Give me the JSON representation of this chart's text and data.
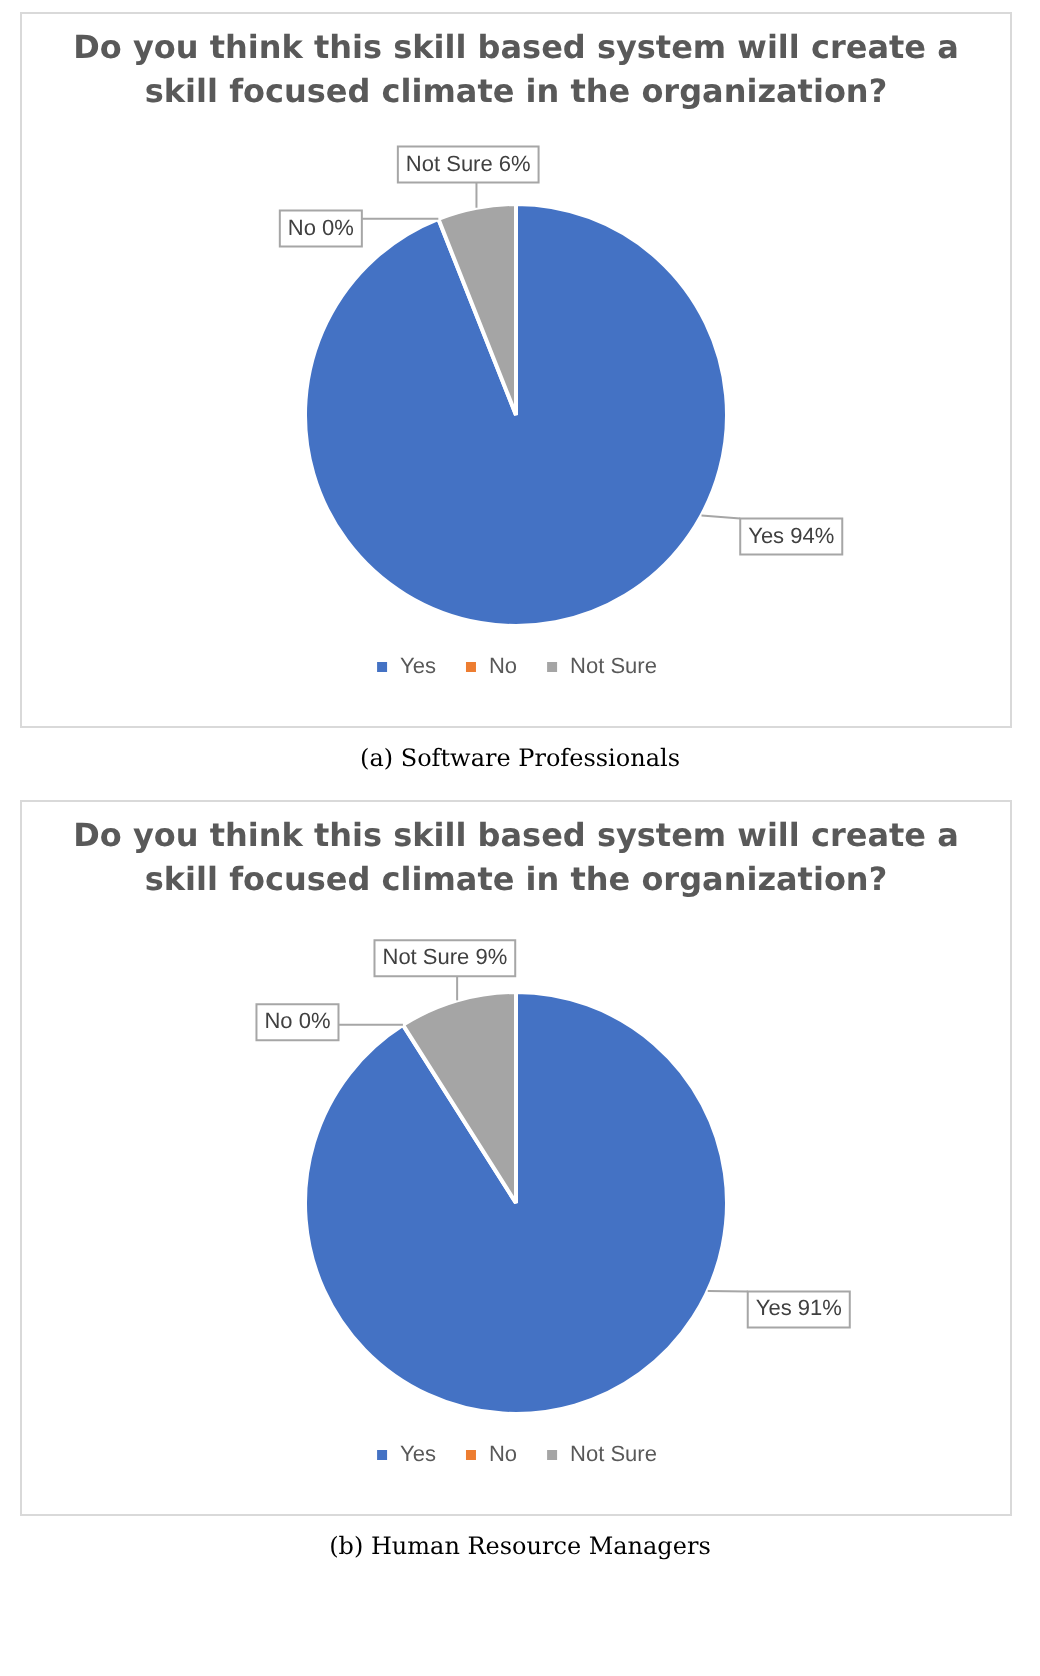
{
  "chart_data": [
    {
      "type": "pie",
      "title": "Do you think this skill based system will create a skill focused climate in the organization?",
      "categories": [
        "Yes",
        "No",
        "Not Sure"
      ],
      "values": [
        94,
        0,
        6
      ],
      "colors": [
        "#4472c4",
        "#ed7d31",
        "#a5a5a5"
      ],
      "value_labels": [
        "Yes 94%",
        "No 0%",
        "Not Sure 6%"
      ],
      "legend": "bottom",
      "annotations": [
        "(a) Software Professionals"
      ]
    },
    {
      "type": "pie",
      "title": "Do you think this skill based system will create a skill focused climate in the organization?",
      "categories": [
        "Yes",
        "No",
        "Not Sure"
      ],
      "values": [
        91,
        0,
        9
      ],
      "colors": [
        "#4472c4",
        "#ed7d31",
        "#a5a5a5"
      ],
      "value_labels": [
        "Yes 91%",
        "No 0%",
        "Not Sure 9%"
      ],
      "legend": "bottom",
      "annotations": [
        "(b) Human Resource Managers"
      ]
    }
  ]
}
